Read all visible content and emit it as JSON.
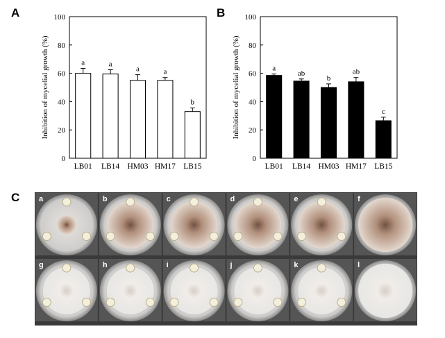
{
  "chart_data": [
    {
      "type": "bar",
      "panel_label": "A",
      "ylabel": "Inhibition of mycelial growth (%)",
      "categories": [
        "LB01",
        "LB14",
        "HM03",
        "HM17",
        "LB15"
      ],
      "values": [
        60,
        59.5,
        55,
        55,
        33
      ],
      "errors": [
        3.5,
        3,
        4,
        2,
        2.5
      ],
      "annotations": [
        "a",
        "a",
        "a",
        "a",
        "b"
      ],
      "color": "#ffffff",
      "ylim": [
        0,
        100
      ],
      "yticks": [
        0,
        20,
        40,
        60,
        80,
        100
      ],
      "grid": false
    },
    {
      "type": "bar",
      "panel_label": "B",
      "ylabel": "Inhibition of mycelial growth (%)",
      "categories": [
        "LB01",
        "LB14",
        "HM03",
        "HM17",
        "LB15"
      ],
      "values": [
        58.5,
        54.5,
        50,
        54,
        26.5
      ],
      "errors": [
        1,
        1.5,
        2.5,
        3,
        2.5
      ],
      "annotations": [
        "a",
        "ab",
        "b",
        "ab",
        "c"
      ],
      "color": "#000000",
      "ylim": [
        0,
        100
      ],
      "yticks": [
        0,
        20,
        40,
        60,
        80,
        100
      ],
      "grid": false
    }
  ],
  "panel_c": {
    "label": "C",
    "plates": [
      "a",
      "b",
      "c",
      "d",
      "e",
      "f",
      "g",
      "h",
      "i",
      "j",
      "k",
      "l"
    ]
  }
}
